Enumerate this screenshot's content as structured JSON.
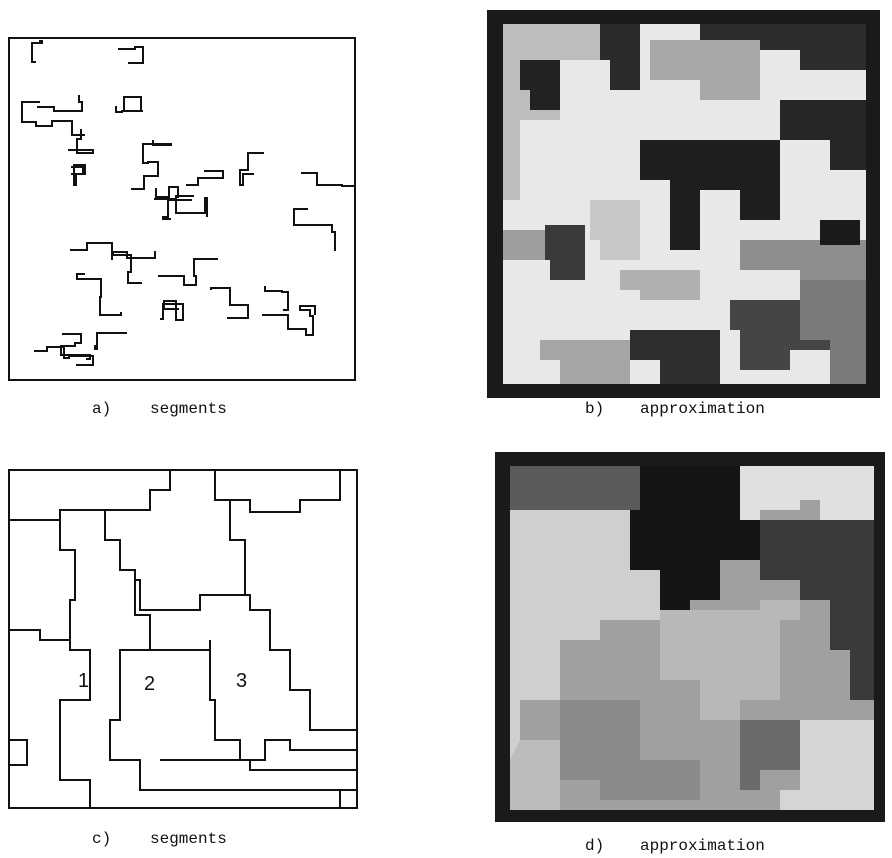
{
  "panels": [
    {
      "label": "a)",
      "caption": "segments"
    },
    {
      "label": "b)",
      "caption": "approximation"
    },
    {
      "label": "c)",
      "caption": "segments",
      "regions": [
        "1",
        "2",
        "3"
      ]
    },
    {
      "label": "d)",
      "caption": "approximation"
    }
  ]
}
